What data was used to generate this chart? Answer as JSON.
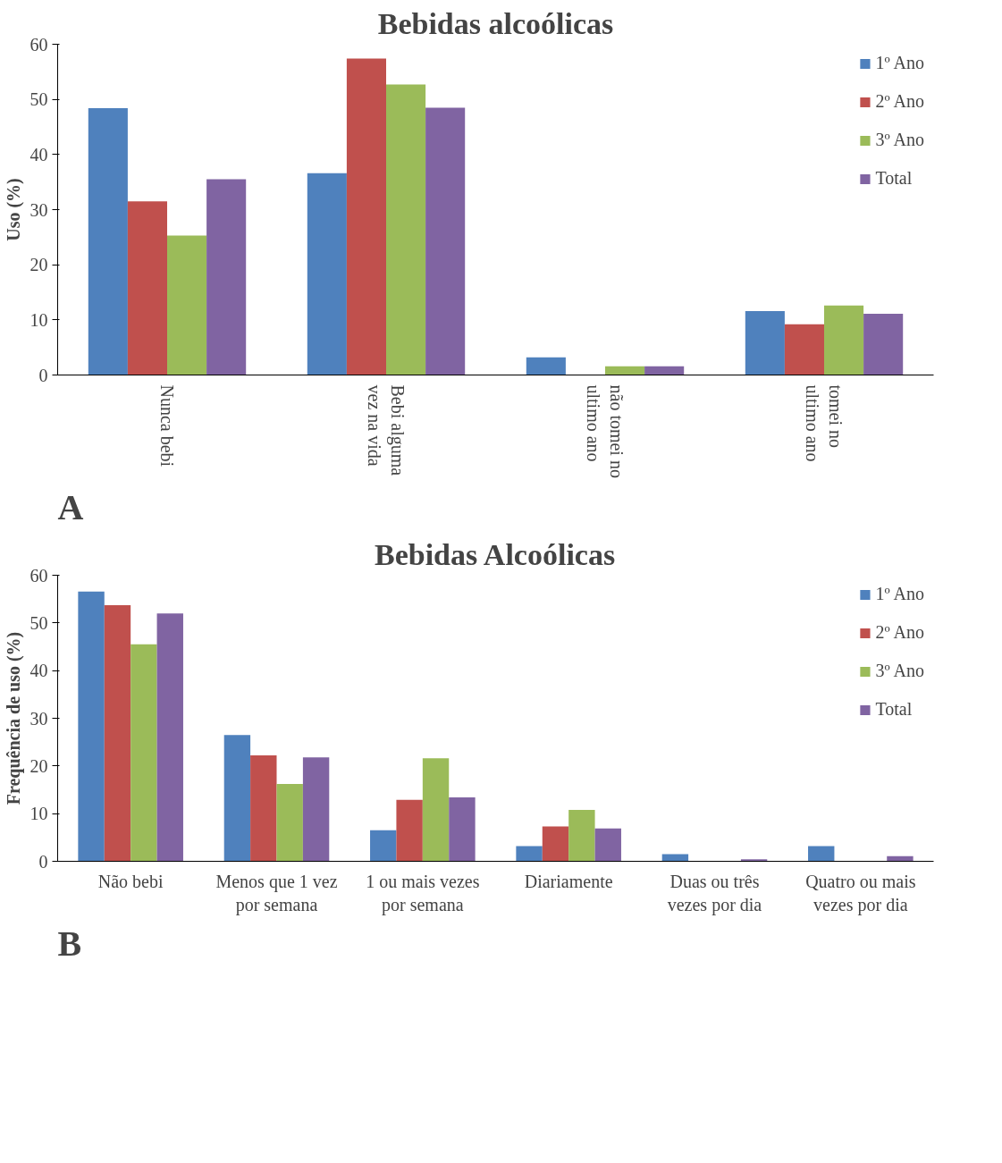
{
  "chart_data": [
    {
      "type": "bar",
      "title": "Bebidas alcoólicas",
      "ylabel": "Uso (%)",
      "categories": [
        "Nunca bebi",
        "Bebi alguma vez na vida",
        "não tomei no ultimo ano",
        "tomei no ultimo ano"
      ],
      "series": [
        {
          "name": "1º Ano",
          "color": "#4f81bd",
          "values": [
            48.4,
            36.6,
            3.2,
            11.6
          ]
        },
        {
          "name": "2º Ano",
          "color": "#c0504d",
          "values": [
            31.5,
            57.4,
            0,
            9.2
          ]
        },
        {
          "name": "3º Ano",
          "color": "#9bbb59",
          "values": [
            25.3,
            52.7,
            1.6,
            12.6
          ]
        },
        {
          "name": "Total",
          "color": "#8064a2",
          "values": [
            35.5,
            48.5,
            1.6,
            11.1
          ]
        }
      ],
      "ylim": [
        0,
        60
      ],
      "yticks": [
        0,
        10,
        20,
        30,
        40,
        50,
        60
      ],
      "grid": false,
      "legend": "top right",
      "annotations": [
        "A"
      ]
    },
    {
      "type": "bar",
      "title": "Bebidas Alcoólicas",
      "ylabel": "Frequência de uso (%)",
      "categories": [
        "Não bebi",
        "Menos que 1 vez por semana",
        "1 ou mais vezes por semana",
        "Diariamente",
        "Duas ou três vezes por dia",
        "Quatro ou mais vezes por dia"
      ],
      "series": [
        {
          "name": "1º Ano",
          "color": "#4f81bd",
          "values": [
            56.6,
            26.5,
            6.5,
            3.2,
            1.5,
            3.2
          ]
        },
        {
          "name": "2º Ano",
          "color": "#c0504d",
          "values": [
            53.7,
            22.2,
            12.9,
            7.3,
            0,
            0
          ]
        },
        {
          "name": "3º Ano",
          "color": "#9bbb59",
          "values": [
            45.5,
            16.2,
            21.6,
            10.8,
            0,
            0
          ]
        },
        {
          "name": "Total",
          "color": "#8064a2",
          "values": [
            52.0,
            21.8,
            13.4,
            6.9,
            0.4,
            1.1
          ]
        }
      ],
      "ylim": [
        0,
        60
      ],
      "yticks": [
        0,
        10,
        20,
        30,
        40,
        50,
        60
      ],
      "grid": false,
      "legend": "top right",
      "annotations": [
        "B"
      ]
    }
  ]
}
